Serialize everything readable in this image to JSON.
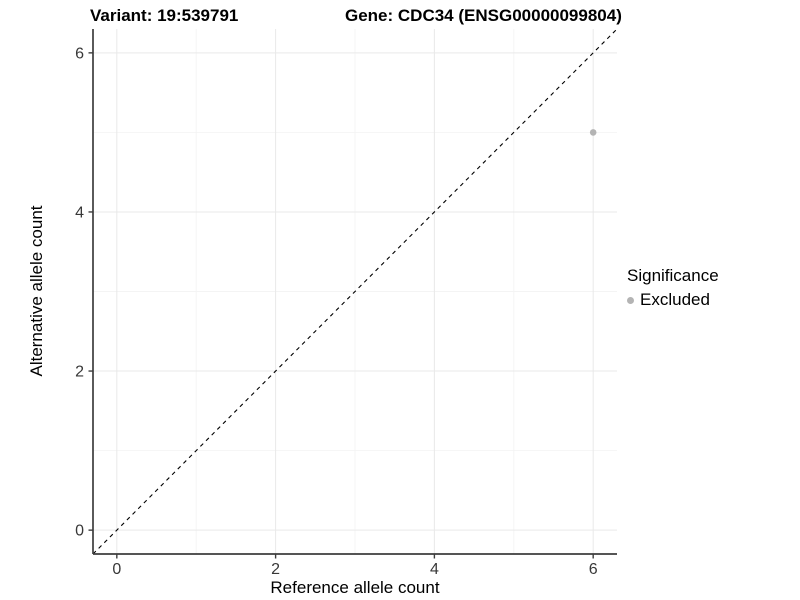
{
  "chart_data": {
    "type": "scatter",
    "title_left": "Variant: 19:539791",
    "title_right": "Gene: CDC34 (ENSG00000099804)",
    "xlabel": "Reference allele count",
    "ylabel": "Alternative allele count",
    "xlim": [
      -0.3,
      6.3
    ],
    "ylim": [
      -0.3,
      6.3
    ],
    "x_ticks": [
      0,
      2,
      4,
      6
    ],
    "y_ticks": [
      0,
      2,
      4,
      6
    ],
    "x_minor_ticks": [
      1,
      3,
      5
    ],
    "y_minor_ticks": [
      1,
      3,
      5
    ],
    "grid": true,
    "points": [
      {
        "x": 6,
        "y": 5,
        "series": "Excluded"
      }
    ],
    "reference_line": {
      "style": "dashed",
      "from": [
        -0.3,
        -0.3
      ],
      "to": [
        6.3,
        6.3
      ]
    },
    "legend": {
      "title": "Significance",
      "position": "right",
      "items": [
        {
          "label": "Excluded",
          "color": "#b4b4b4"
        }
      ]
    },
    "colors": {
      "point": "#b4b4b4",
      "grid_major": "#e9e9e9",
      "grid_minor": "#f4f4f4",
      "axis": "#3d3d3d",
      "tick_label": "#383838",
      "dashed_line": "#000000",
      "background": "#ffffff"
    }
  }
}
